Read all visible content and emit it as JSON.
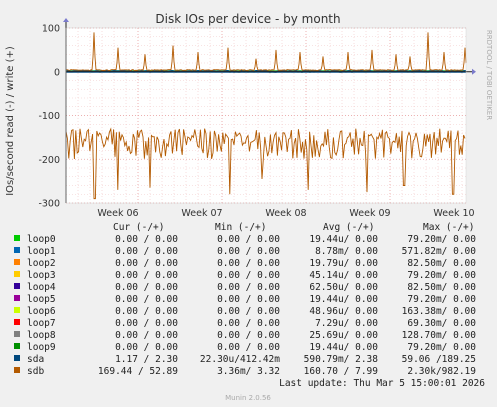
{
  "chart_data": {
    "type": "line",
    "title": "Disk IOs per device - by month",
    "ylabel": "IOs/second read (-) / write (+)",
    "ylim": [
      -300,
      100
    ],
    "yticks": [
      100,
      0,
      -100,
      -200,
      -300
    ],
    "xticks": [
      "Week 06",
      "Week 07",
      "Week 08",
      "Week 09",
      "Week 10"
    ],
    "grid": true,
    "side_label": "RRDTOOL / TOBI OETIKER",
    "sdb_read_spikes": [
      -290,
      -270,
      -265,
      -280,
      -245,
      -270,
      -275,
      -260,
      -280
    ],
    "sdb_read_band": [
      -200,
      -130
    ],
    "sdb_write_spikes_count": 17,
    "legend_header": {
      "cur": "Cur (-/+)",
      "min": "Min (-/+)",
      "avg": "Avg (-/+)",
      "max": "Max (-/+)"
    },
    "series": [
      {
        "name": "loop0",
        "color": "#00cc00",
        "cur": "0.00 /  0.00",
        "min": "0.00 /  0.00",
        "avg": "19.44u/  0.00",
        "max": "79.20m/  0.00"
      },
      {
        "name": "loop1",
        "color": "#0066b3",
        "cur": "0.00 /  0.00",
        "min": "0.00 /  0.00",
        "avg": "8.78m/  0.00",
        "max": "571.82m/  0.00"
      },
      {
        "name": "loop2",
        "color": "#ff8000",
        "cur": "0.00 /  0.00",
        "min": "0.00 /  0.00",
        "avg": "19.79u/  0.00",
        "max": "82.50m/  0.00"
      },
      {
        "name": "loop3",
        "color": "#ffcc00",
        "cur": "0.00 /  0.00",
        "min": "0.00 /  0.00",
        "avg": "45.14u/  0.00",
        "max": "79.20m/  0.00"
      },
      {
        "name": "loop4",
        "color": "#330099",
        "cur": "0.00 /  0.00",
        "min": "0.00 /  0.00",
        "avg": "62.50u/  0.00",
        "max": "82.50m/  0.00"
      },
      {
        "name": "loop5",
        "color": "#990099",
        "cur": "0.00 /  0.00",
        "min": "0.00 /  0.00",
        "avg": "19.44u/  0.00",
        "max": "79.20m/  0.00"
      },
      {
        "name": "loop6",
        "color": "#ccff00",
        "cur": "0.00 /  0.00",
        "min": "0.00 /  0.00",
        "avg": "48.96u/  0.00",
        "max": "163.38m/  0.00"
      },
      {
        "name": "loop7",
        "color": "#ff0000",
        "cur": "0.00 /  0.00",
        "min": "0.00 /  0.00",
        "avg": "7.29u/  0.00",
        "max": "69.30m/  0.00"
      },
      {
        "name": "loop8",
        "color": "#808080",
        "cur": "0.00 /  0.00",
        "min": "0.00 /  0.00",
        "avg": "25.69u/  0.00",
        "max": "128.70m/  0.00"
      },
      {
        "name": "loop9",
        "color": "#008f00",
        "cur": "0.00 /  0.00",
        "min": "0.00 /  0.00",
        "avg": "19.44u/  0.00",
        "max": "79.20m/  0.00"
      },
      {
        "name": "sda",
        "color": "#00487d",
        "cur": "1.17 /  2.30",
        "min": "22.30u/412.42m",
        "avg": "590.79m/  2.38",
        "max": "59.06 /189.25"
      },
      {
        "name": "sdb",
        "color": "#b35a00",
        "cur": "169.44 / 52.89",
        "min": "3.36m/  3.32",
        "avg": "160.70 /  7.99",
        "max": "2.30k/982.19"
      }
    ]
  },
  "footer": {
    "last_update": "Last update: Thu Mar  5 15:00:01 2026",
    "version": "Munin 2.0.56"
  }
}
